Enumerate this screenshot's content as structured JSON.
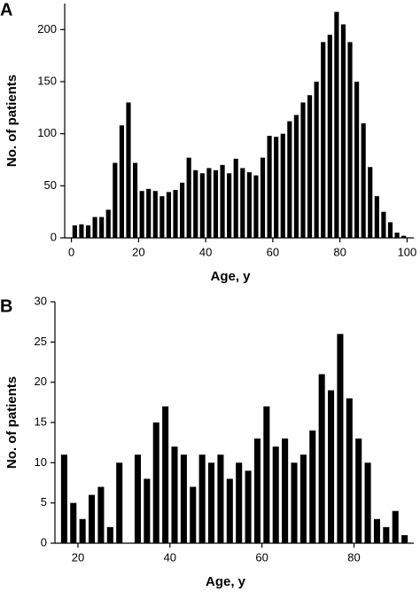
{
  "chart_data": [
    {
      "type": "bar",
      "panel": "A",
      "xlabel": "Age, y",
      "ylabel": "No. of patients",
      "color": "#000000",
      "grid": false,
      "x": [
        1,
        3,
        5,
        7,
        9,
        11,
        13,
        15,
        17,
        19,
        21,
        23,
        25,
        27,
        29,
        31,
        33,
        35,
        37,
        39,
        41,
        43,
        45,
        47,
        49,
        51,
        53,
        55,
        57,
        59,
        61,
        63,
        65,
        67,
        69,
        71,
        73,
        75,
        77,
        79,
        81,
        83,
        85,
        87,
        89,
        91,
        93,
        95,
        97,
        99
      ],
      "values": [
        12,
        13,
        12,
        20,
        20,
        27,
        72,
        108,
        130,
        72,
        45,
        47,
        45,
        40,
        44,
        46,
        53,
        77,
        65,
        62,
        67,
        65,
        70,
        62,
        76,
        67,
        63,
        60,
        77,
        98,
        97,
        100,
        112,
        118,
        130,
        137,
        150,
        188,
        195,
        217,
        205,
        188,
        150,
        110,
        68,
        40,
        25,
        15,
        5,
        2
      ],
      "xlim": [
        -2,
        102
      ],
      "xticks": [
        0,
        20,
        40,
        60,
        80,
        100
      ],
      "ylim": [
        0,
        225
      ],
      "yticks": [
        0,
        50,
        100,
        150,
        200
      ]
    },
    {
      "type": "bar",
      "panel": "B",
      "xlabel": "Age, y",
      "ylabel": "No. of patients",
      "color": "#000000",
      "grid": false,
      "x": [
        17,
        19,
        21,
        23,
        25,
        27,
        29,
        31,
        33,
        35,
        37,
        39,
        41,
        43,
        45,
        47,
        49,
        51,
        53,
        55,
        57,
        59,
        61,
        63,
        65,
        67,
        69,
        71,
        73,
        75,
        77,
        79,
        81,
        83,
        85,
        87,
        89,
        91
      ],
      "values": [
        11,
        5,
        3,
        6,
        7,
        2,
        10,
        0,
        11,
        8,
        15,
        17,
        12,
        11,
        7,
        11,
        10,
        11,
        8,
        10,
        9,
        13,
        17,
        12,
        13,
        10,
        11,
        14,
        21,
        19,
        26,
        18,
        13,
        10,
        3,
        2,
        4,
        1
      ],
      "xlim": [
        15,
        93
      ],
      "xticks": [
        20,
        40,
        60,
        80
      ],
      "ylim": [
        0,
        30
      ],
      "yticks": [
        0,
        5,
        10,
        15,
        20,
        25,
        30
      ]
    }
  ]
}
